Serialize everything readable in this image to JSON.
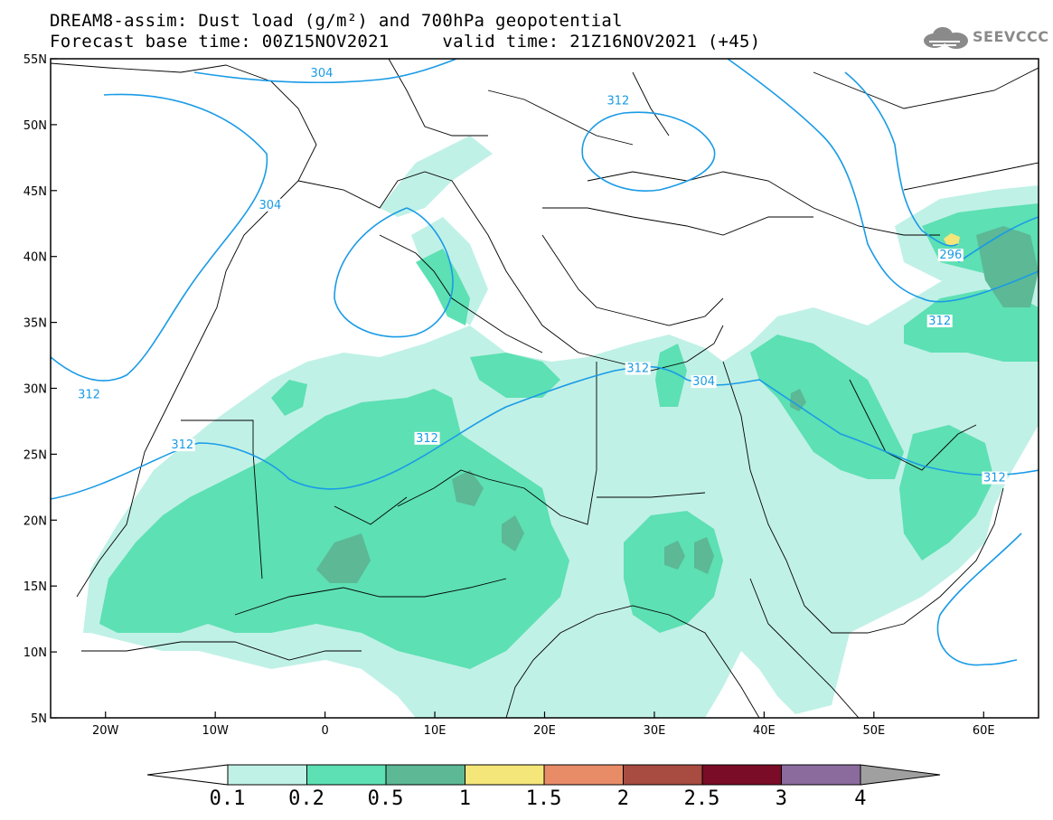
{
  "header": {
    "line1": "DREAM8-assim: Dust load (g/m²) and 700hPa geopotential",
    "line2": "Forecast base time: 00Z15NOV2021     valid time: 21Z16NOV2021 (+45)"
  },
  "logo": {
    "text": "SEEVCCC",
    "icon": "cloud-logo-icon"
  },
  "map": {
    "lon_range": [
      -25,
      65
    ],
    "lat_range": [
      5,
      55
    ],
    "lon_ticks": [
      "20W",
      "10W",
      "0",
      "10E",
      "20E",
      "30E",
      "40E",
      "50E",
      "60E"
    ],
    "lat_ticks": [
      "55N",
      "50N",
      "45N",
      "40N",
      "35N",
      "30N",
      "25N",
      "20N",
      "15N",
      "10N",
      "5N"
    ],
    "contour_labels": [
      "304",
      "312",
      "304",
      "312",
      "312",
      "312",
      "312",
      "304",
      "296",
      "312",
      "312"
    ],
    "contour_color": "#1a9be6"
  },
  "colorbar": {
    "labels": [
      "0.1",
      "0.2",
      "0.5",
      "1",
      "1.5",
      "2",
      "2.5",
      "3",
      "4"
    ],
    "colors": [
      "#c0f1e6",
      "#5de0b3",
      "#5cb895",
      "#f5e67a",
      "#e88c68",
      "#a84b40",
      "#7a0c28",
      "#8b6b9e",
      "#a0a0a0"
    ]
  }
}
